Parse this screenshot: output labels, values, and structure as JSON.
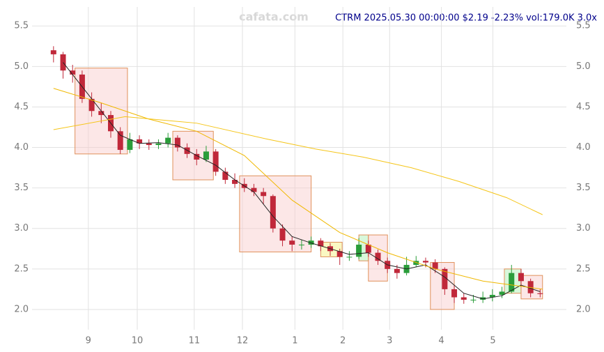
{
  "chart_data": {
    "type": "candlestick",
    "title": "CTRM 2025.05.30 00:00:00 $2.19 -2.23% vol:179.0K 3.0x",
    "watermark": "cafata.com",
    "x": [
      0,
      4,
      8,
      12,
      16,
      20,
      24,
      28,
      32,
      36,
      40,
      44,
      48,
      52,
      56,
      60,
      64,
      68,
      72,
      76,
      80,
      84,
      88,
      92,
      96,
      100,
      104,
      108,
      112,
      116,
      120,
      124,
      128,
      132,
      136,
      140,
      144,
      148,
      152,
      156,
      160,
      164,
      168,
      172,
      176,
      180,
      184,
      188,
      192,
      196,
      200,
      204
    ],
    "open": [
      5.2,
      5.15,
      4.95,
      4.9,
      4.6,
      4.45,
      4.4,
      4.2,
      3.97,
      4.1,
      4.05,
      4.03,
      4.05,
      4.12,
      4.0,
      3.92,
      3.85,
      3.95,
      3.7,
      3.6,
      3.55,
      3.5,
      3.45,
      3.4,
      3.0,
      2.85,
      2.8,
      2.8,
      2.85,
      2.78,
      2.72,
      2.65,
      2.65,
      2.8,
      2.7,
      2.6,
      2.5,
      2.45,
      2.55,
      2.6,
      2.58,
      2.5,
      2.25,
      2.15,
      2.12,
      2.12,
      2.15,
      2.18,
      2.22,
      2.45,
      2.35,
      2.2
    ],
    "high": [
      5.25,
      5.18,
      5.02,
      4.95,
      4.68,
      4.55,
      4.45,
      4.25,
      4.18,
      4.15,
      4.1,
      4.1,
      4.18,
      4.15,
      4.05,
      3.98,
      4.02,
      3.98,
      3.75,
      3.68,
      3.62,
      3.55,
      3.5,
      3.42,
      3.05,
      2.9,
      2.86,
      2.9,
      2.88,
      2.82,
      2.75,
      2.72,
      2.88,
      2.85,
      2.74,
      2.64,
      2.55,
      2.65,
      2.66,
      2.64,
      2.62,
      2.52,
      2.3,
      2.2,
      2.18,
      2.22,
      2.25,
      2.28,
      2.55,
      2.5,
      2.38,
      2.25
    ],
    "low": [
      5.05,
      4.85,
      4.8,
      4.55,
      4.38,
      4.3,
      4.12,
      3.92,
      3.93,
      3.98,
      3.97,
      3.98,
      4.0,
      3.95,
      3.87,
      3.78,
      3.82,
      3.65,
      3.55,
      3.5,
      3.45,
      3.4,
      3.3,
      2.95,
      2.78,
      2.72,
      2.74,
      2.76,
      2.72,
      2.66,
      2.55,
      2.6,
      2.62,
      2.65,
      2.55,
      2.45,
      2.38,
      2.42,
      2.52,
      2.52,
      2.45,
      2.18,
      2.08,
      2.07,
      2.08,
      2.08,
      2.1,
      2.14,
      2.2,
      2.28,
      2.15,
      2.15
    ],
    "close": [
      5.15,
      4.95,
      4.9,
      4.6,
      4.45,
      4.4,
      4.2,
      3.97,
      4.1,
      4.05,
      4.03,
      4.05,
      4.12,
      4.0,
      3.92,
      3.85,
      3.95,
      3.7,
      3.6,
      3.55,
      3.5,
      3.45,
      3.4,
      3.0,
      2.85,
      2.8,
      2.8,
      2.85,
      2.78,
      2.72,
      2.65,
      2.65,
      2.8,
      2.7,
      2.6,
      2.5,
      2.45,
      2.55,
      2.6,
      2.58,
      2.5,
      2.25,
      2.15,
      2.12,
      2.12,
      2.15,
      2.18,
      2.22,
      2.45,
      2.35,
      2.2,
      2.19
    ],
    "up_color": "#2a9d3a",
    "down_color": "#c0283a",
    "series": [
      {
        "color": "#222222",
        "x": [
          4,
          12,
          20,
          28,
          36,
          44,
          52,
          60,
          68,
          76,
          84,
          92,
          100,
          108,
          116,
          124,
          132,
          140,
          148,
          156,
          164,
          172,
          180,
          188,
          196,
          204
        ],
        "values": [
          5.05,
          4.75,
          4.45,
          4.15,
          4.05,
          4.06,
          4.03,
          3.9,
          3.78,
          3.6,
          3.45,
          3.15,
          2.9,
          2.82,
          2.75,
          2.68,
          2.7,
          2.55,
          2.5,
          2.55,
          2.4,
          2.2,
          2.13,
          2.17,
          2.3,
          2.22
        ]
      },
      {
        "color": "#f0b800",
        "x": [
          0,
          20,
          40,
          60,
          80,
          100,
          120,
          140,
          160,
          180,
          205
        ],
        "values": [
          4.73,
          4.55,
          4.35,
          4.2,
          3.9,
          3.35,
          2.95,
          2.7,
          2.5,
          2.35,
          2.25
        ]
      },
      {
        "color": "#f5c518",
        "x": [
          0,
          30,
          60,
          90,
          110,
          130,
          150,
          170,
          190,
          205
        ],
        "values": [
          4.22,
          4.38,
          4.3,
          4.1,
          3.98,
          3.88,
          3.75,
          3.58,
          3.38,
          3.17
        ]
      }
    ],
    "boxes": [
      {
        "x": [
          9,
          31
        ],
        "y": [
          3.92,
          4.98
        ],
        "color": "#f8c9c9"
      },
      {
        "x": [
          50,
          67
        ],
        "y": [
          3.6,
          4.2
        ],
        "color": "#f8c9c9"
      },
      {
        "x": [
          78,
          108
        ],
        "y": [
          2.71,
          3.65
        ],
        "color": "#f8c9c9"
      },
      {
        "x": [
          112,
          121
        ],
        "y": [
          2.65,
          2.83
        ],
        "color": "#f5f07a"
      },
      {
        "x": [
          128,
          132
        ],
        "y": [
          2.6,
          2.92
        ],
        "color": "#a8f0b0"
      },
      {
        "x": [
          132,
          140
        ],
        "y": [
          2.35,
          2.92
        ],
        "color": "#f8c9c9"
      },
      {
        "x": [
          158,
          168
        ],
        "y": [
          2.0,
          2.58
        ],
        "color": "#f8c9c9"
      },
      {
        "x": [
          189,
          196
        ],
        "y": [
          2.2,
          2.5
        ],
        "color": "#a8f0b0"
      },
      {
        "x": [
          196,
          205
        ],
        "y": [
          2.13,
          2.42
        ],
        "color": "#f8c9c9"
      }
    ],
    "xlim": [
      -9,
      215
    ],
    "xticks": [
      {
        "value": 14.6,
        "label": "9"
      },
      {
        "value": 35.1,
        "label": "10"
      },
      {
        "value": 59,
        "label": "11"
      },
      {
        "value": 79.2,
        "label": "12"
      },
      {
        "value": 101.2,
        "label": "1"
      },
      {
        "value": 121.3,
        "label": "2"
      },
      {
        "value": 140.9,
        "label": "3"
      },
      {
        "value": 162.6,
        "label": "4"
      },
      {
        "value": 184.2,
        "label": "5"
      }
    ],
    "ylim": [
      1.75,
      5.7
    ],
    "yticks": [
      {
        "value": 2,
        "label": "2.0"
      },
      {
        "value": 2.5,
        "label": "2.5"
      },
      {
        "value": 3,
        "label": "3.0"
      },
      {
        "value": 3.5,
        "label": "3.5"
      },
      {
        "value": 4,
        "label": "4.0"
      },
      {
        "value": 4.5,
        "label": "4.5"
      },
      {
        "value": 5,
        "label": "5.0"
      },
      {
        "value": 5.5,
        "label": "5.5"
      }
    ],
    "grid": true
  }
}
